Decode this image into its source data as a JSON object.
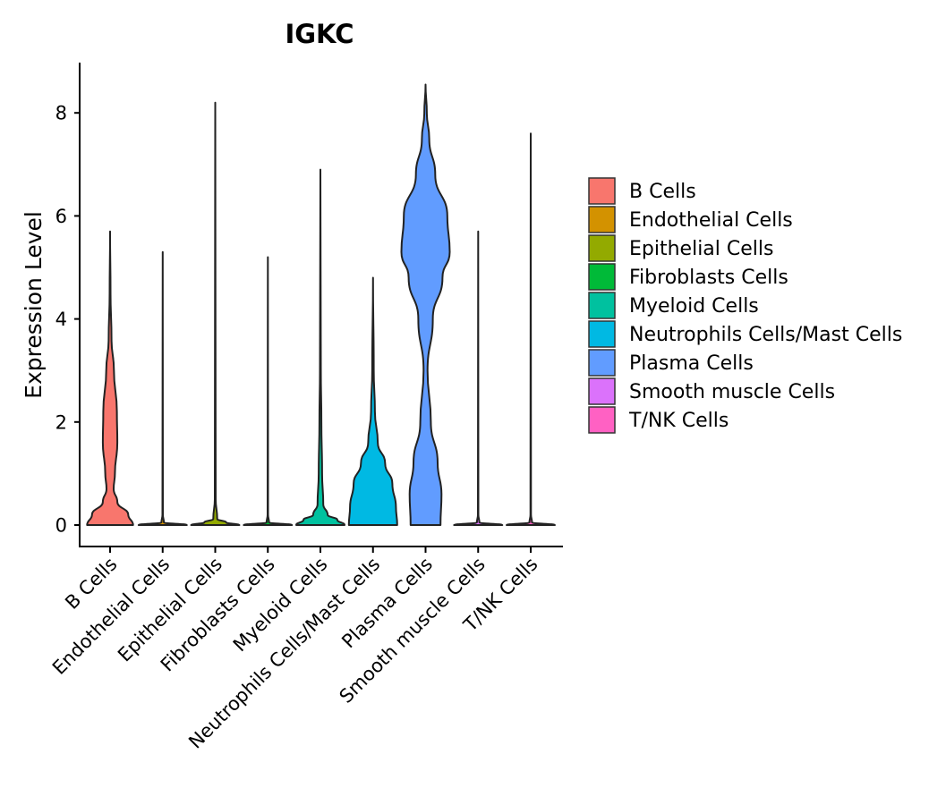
{
  "chart_data": {
    "type": "violin",
    "title": "IGKC",
    "xlabel": "",
    "ylabel": "Expression Level",
    "ylim": [
      -0.4,
      9.0
    ],
    "yticks": [
      0,
      2,
      4,
      6,
      8
    ],
    "grid": false,
    "legend_position": "right",
    "categories": [
      "B Cells",
      "Endothelial Cells",
      "Epithelial Cells",
      "Fibroblasts Cells",
      "Myeloid Cells",
      "Neutrophils Cells/Mast Cells",
      "Plasma Cells",
      "Smooth muscle Cells",
      "T/NK Cells"
    ],
    "colors": [
      "#F8766D",
      "#D39200",
      "#93AA00",
      "#00BA38",
      "#00C19F",
      "#00B9E3",
      "#619CFF",
      "#DB72FB",
      "#FF61C3"
    ],
    "legend": [
      "B Cells",
      "Endothelial Cells",
      "Epithelial Cells",
      "Fibroblasts Cells",
      "Myeloid Cells",
      "Neutrophils Cells/Mast Cells",
      "Plasma Cells",
      "Smooth muscle Cells",
      "T/NK Cells"
    ],
    "violins": [
      {
        "name": "B Cells",
        "max": 5.7,
        "profile": [
          [
            0,
            0.95
          ],
          [
            0.2,
            0.75
          ],
          [
            0.45,
            0.3
          ],
          [
            0.7,
            0.15
          ],
          [
            1.0,
            0.2
          ],
          [
            1.6,
            0.3
          ],
          [
            2.2,
            0.28
          ],
          [
            3.0,
            0.16
          ],
          [
            3.6,
            0.06
          ],
          [
            4.5,
            0.02
          ],
          [
            5.7,
            0
          ]
        ]
      },
      {
        "name": "Endothelial Cells",
        "max": 5.3,
        "profile": [
          [
            0,
            1.0
          ],
          [
            0.05,
            0.05
          ],
          [
            0.2,
            0.01
          ],
          [
            5.3,
            0
          ]
        ]
      },
      {
        "name": "Epithelial Cells",
        "max": 8.2,
        "profile": [
          [
            0,
            1.0
          ],
          [
            0.05,
            0.45
          ],
          [
            0.12,
            0.08
          ],
          [
            0.5,
            0.02
          ],
          [
            8.2,
            0
          ]
        ]
      },
      {
        "name": "Fibroblasts Cells",
        "max": 5.2,
        "profile": [
          [
            0,
            1.0
          ],
          [
            0.05,
            0.05
          ],
          [
            0.2,
            0.01
          ],
          [
            5.2,
            0
          ]
        ]
      },
      {
        "name": "Myeloid Cells",
        "max": 6.9,
        "profile": [
          [
            0,
            1.0
          ],
          [
            0.1,
            0.7
          ],
          [
            0.2,
            0.3
          ],
          [
            0.4,
            0.12
          ],
          [
            1.0,
            0.07
          ],
          [
            2.0,
            0.04
          ],
          [
            3.0,
            0.02
          ],
          [
            6.9,
            0
          ]
        ]
      },
      {
        "name": "Neutrophils Cells/Mast Cells",
        "max": 4.8,
        "profile": [
          [
            0,
            1.0
          ],
          [
            0.35,
            0.95
          ],
          [
            0.8,
            0.8
          ],
          [
            1.2,
            0.5
          ],
          [
            1.6,
            0.2
          ],
          [
            2.2,
            0.08
          ],
          [
            3.0,
            0.03
          ],
          [
            4.8,
            0
          ]
        ]
      },
      {
        "name": "Plasma Cells",
        "max": 8.55,
        "profile": [
          [
            0,
            0.62
          ],
          [
            0.6,
            0.66
          ],
          [
            1.2,
            0.5
          ],
          [
            2.0,
            0.22
          ],
          [
            3.0,
            0.08
          ],
          [
            4.0,
            0.3
          ],
          [
            4.8,
            0.7
          ],
          [
            5.3,
            1.0
          ],
          [
            6.0,
            0.9
          ],
          [
            6.8,
            0.4
          ],
          [
            7.5,
            0.15
          ],
          [
            8.0,
            0.05
          ],
          [
            8.55,
            0
          ]
        ]
      },
      {
        "name": "Smooth muscle Cells",
        "max": 5.7,
        "profile": [
          [
            0,
            1.0
          ],
          [
            0.05,
            0.05
          ],
          [
            0.2,
            0.01
          ],
          [
            5.7,
            0
          ]
        ]
      },
      {
        "name": "T/NK Cells",
        "max": 7.6,
        "profile": [
          [
            0,
            1.0
          ],
          [
            0.05,
            0.05
          ],
          [
            0.2,
            0.01
          ],
          [
            7.6,
            0
          ]
        ]
      }
    ]
  }
}
